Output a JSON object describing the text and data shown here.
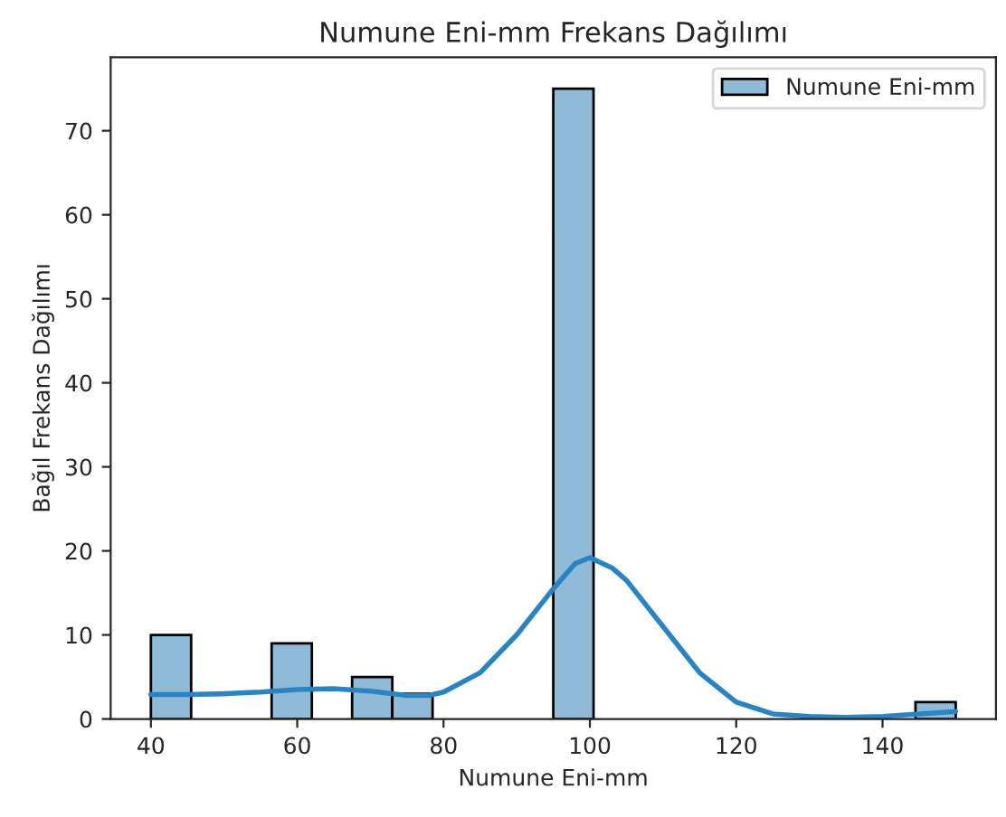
{
  "chart_data": {
    "type": "histogram",
    "title": "Numune Eni-mm Frekans Dağılımı",
    "xlabel": "Numune Eni-mm",
    "ylabel": "Bağıl Frekans Dağılımı",
    "bins": [
      40,
      45.5,
      51,
      56.5,
      62,
      67.5,
      73,
      78.5,
      84,
      89.5,
      95,
      100.5,
      106,
      111.5,
      117,
      122.5,
      128,
      133.5,
      139,
      144.5,
      150
    ],
    "series": [
      {
        "name": "Numune Eni-mm",
        "color": "#8fbbd9",
        "values": [
          10,
          0,
          0,
          9,
          0,
          5,
          3,
          0,
          0,
          0,
          75,
          0,
          0,
          0,
          0,
          0,
          0,
          0,
          0,
          2
        ]
      },
      {
        "type": "line",
        "color": "#2a84c2",
        "x": [
          40,
          45,
          50,
          55,
          60,
          65,
          70,
          75,
          78,
          80,
          85,
          90,
          95,
          98,
          100,
          103,
          105,
          110,
          115,
          120,
          125,
          130,
          135,
          140,
          145,
          150
        ],
        "values": [
          2.9,
          2.9,
          3.0,
          3.2,
          3.5,
          3.6,
          3.3,
          2.8,
          2.8,
          3.2,
          5.5,
          10,
          15.5,
          18.5,
          19.2,
          18,
          16.5,
          11,
          5.5,
          2,
          0.6,
          0.3,
          0.2,
          0.3,
          0.6,
          0.9
        ]
      }
    ],
    "xlim": [
      34.5,
      155.5
    ],
    "ylim": [
      0,
      78.75
    ],
    "xticks": [
      40,
      60,
      80,
      100,
      120,
      140
    ],
    "yticks": [
      0,
      10,
      20,
      30,
      40,
      50,
      60,
      70
    ],
    "grid": false,
    "legend": "top right"
  }
}
